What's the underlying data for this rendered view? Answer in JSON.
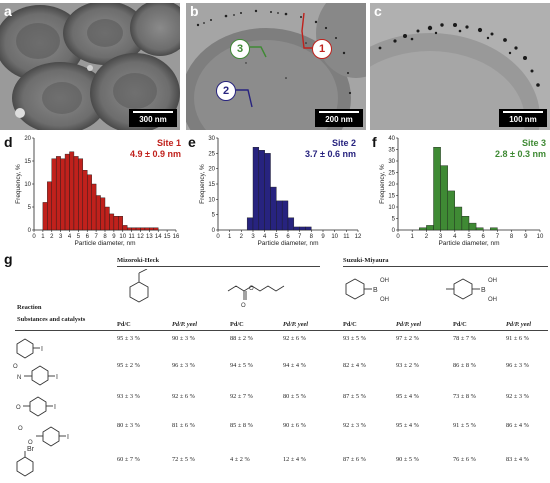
{
  "panels": {
    "a": {
      "letter": "a",
      "scale": "300 nm"
    },
    "b": {
      "letter": "b",
      "scale": "200 nm",
      "markers": [
        "1",
        "2",
        "3"
      ]
    },
    "c": {
      "letter": "c",
      "scale": "100 nm"
    }
  },
  "histograms": [
    {
      "letter": "d",
      "site": "Site 1",
      "size": "4.9 ± 0.9 nm",
      "color": "#c0211c"
    },
    {
      "letter": "e",
      "site": "Site 2",
      "size": "3.7 ± 0.6 nm",
      "color": "#27237f"
    },
    {
      "letter": "f",
      "site": "Site 3",
      "size": "2.8 ± 0.3 nm",
      "color": "#3f8a34"
    }
  ],
  "chart_data": [
    {
      "type": "bar",
      "xlabel": "Particle diameter, nm",
      "ylabel": "Frequency, %",
      "xlim": [
        0,
        16
      ],
      "ylim": [
        0,
        20
      ],
      "yticks": [
        0,
        5,
        10,
        15,
        20
      ],
      "xticks": [
        0,
        1,
        2,
        3,
        4,
        5,
        6,
        7,
        8,
        9,
        10,
        11,
        12,
        13,
        14,
        15,
        16
      ],
      "bin_start": 1,
      "bin_width": 0.5,
      "values": [
        6,
        10.5,
        15.5,
        16,
        15.5,
        16.5,
        17,
        16,
        15.5,
        13,
        12,
        10,
        7.5,
        7,
        5,
        3.5,
        3,
        3,
        1,
        0.5,
        0.5,
        0.5,
        0.5,
        0.5,
        0.5,
        0.5,
        0
      ]
    },
    {
      "type": "bar",
      "xlabel": "Particle diameter, nm",
      "ylabel": "Frequency, %",
      "xlim": [
        0,
        12
      ],
      "ylim": [
        0,
        30
      ],
      "yticks": [
        0,
        5,
        10,
        15,
        20,
        25,
        30
      ],
      "xticks": [
        0,
        1,
        2,
        3,
        4,
        5,
        6,
        7,
        8,
        9,
        10,
        11,
        12
      ],
      "bin_start": 2.5,
      "bin_width": 0.5,
      "values": [
        4,
        27,
        26,
        25,
        14,
        9.5,
        9.5,
        4,
        1,
        1,
        1
      ]
    },
    {
      "type": "bar",
      "xlabel": "Particle diameter, nm",
      "ylabel": "Frequency, %",
      "xlim": [
        0,
        10
      ],
      "ylim": [
        0,
        40
      ],
      "yticks": [
        0,
        5,
        10,
        15,
        20,
        25,
        30,
        35,
        40
      ],
      "xticks": [
        0,
        1,
        2,
        3,
        4,
        5,
        6,
        7,
        8,
        9,
        10
      ],
      "bin_start": 1.5,
      "bin_width": 0.5,
      "values": [
        1,
        2,
        36,
        28,
        17,
        10,
        6,
        3,
        1,
        0,
        1
      ]
    }
  ],
  "table": {
    "letter": "g",
    "groups": [
      "Mizoroki-Heck",
      "Suzuki-Miyaura"
    ],
    "row_header_1": "Reaction",
    "row_header_2": "Substances and catalysts",
    "col_labels": [
      "Pd/C",
      "Pd/P. yeel",
      "Pd/C",
      "Pd/P. yeel",
      "Pd/C",
      "Pd/P. yeel",
      "Pd/C",
      "Pd/P. yeel"
    ],
    "reagent_labels": {
      "oh": "OH",
      "b": "B"
    },
    "substrate_labels": [
      "I",
      "O",
      "N",
      "I",
      "O",
      "I",
      "O",
      "O",
      "I",
      "Br"
    ],
    "rows": [
      [
        "95 ± 3 %",
        "90 ± 3 %",
        "88 ± 2 %",
        "92 ± 6 %",
        "93 ± 5 %",
        "97 ± 2 %",
        "78 ± 7 %",
        "91 ± 6 %"
      ],
      [
        "95 ± 2 %",
        "96 ± 3 %",
        "94 ± 5 %",
        "94 ± 4 %",
        "82 ± 4 %",
        "93 ± 2 %",
        "86 ± 8 %",
        "96 ± 3 %"
      ],
      [
        "93 ± 3 %",
        "92 ± 6 %",
        "92 ± 7 %",
        "80 ± 5 %",
        "87 ± 5 %",
        "95 ± 4 %",
        "73 ± 8 %",
        "92 ± 3 %"
      ],
      [
        "80 ± 3 %",
        "81 ± 6 %",
        "85 ± 8 %",
        "90 ± 6 %",
        "92 ± 3 %",
        "95 ± 4 %",
        "91 ± 5 %",
        "86 ± 4 %"
      ],
      [
        "60 ± 7 %",
        "72 ± 5 %",
        "4 ± 2 %",
        "12 ± 4 %",
        "87 ± 6 %",
        "90 ± 5 %",
        "76 ± 6 %",
        "83 ± 4 %"
      ]
    ]
  }
}
